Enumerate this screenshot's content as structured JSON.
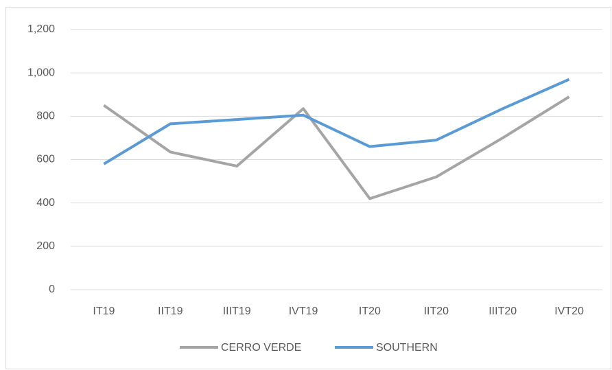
{
  "chart_data": {
    "type": "line",
    "categories": [
      "IT19",
      "IIT19",
      "IIIT19",
      "IVT19",
      "IT20",
      "IIT20",
      "IIIT20",
      "IVT20"
    ],
    "series": [
      {
        "name": "CERRO VERDE",
        "color": "#a5a5a5",
        "values": [
          850,
          635,
          570,
          835,
          420,
          520,
          700,
          890
        ]
      },
      {
        "name": "SOUTHERN",
        "color": "#5b9bd5",
        "values": [
          580,
          765,
          785,
          805,
          660,
          690,
          835,
          970
        ]
      }
    ],
    "ylim": [
      0,
      1200
    ],
    "yticks": [
      0,
      200,
      400,
      600,
      800,
      {
        "value": 1000,
        "label": "1,000"
      },
      {
        "value": 1200,
        "label": "1,200"
      }
    ],
    "grid": true,
    "legend": "bottom"
  }
}
